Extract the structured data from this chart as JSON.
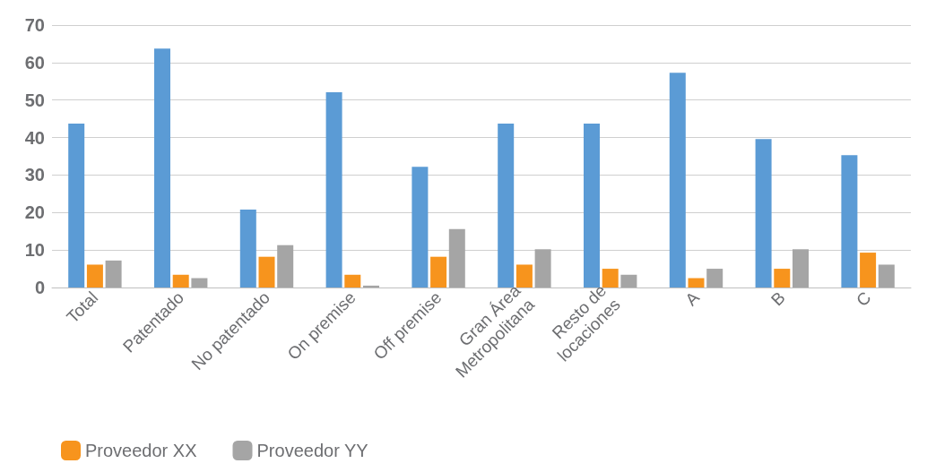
{
  "chart_data": {
    "type": "bar",
    "categories": [
      "Total",
      "Patentado",
      "No patentado",
      "On premise",
      "Off premise",
      "Gran Área\nMetropolitana",
      "Resto de\nlocaciones",
      "A",
      "B",
      "C"
    ],
    "series": [
      {
        "color": "#5b9bd5",
        "values": [
          43.7,
          63.7,
          20.8,
          52.1,
          32.2,
          43.7,
          43.7,
          57.3,
          39.6,
          35.3
        ]
      },
      {
        "name": "Proveedor XX",
        "color": "#f7941d",
        "values": [
          6.1,
          3.4,
          8.2,
          3.4,
          8.2,
          6.1,
          5,
          2.5,
          5,
          9.3
        ]
      },
      {
        "name": "Proveedor YY",
        "color": "#a5a5a5",
        "values": [
          7.2,
          2.5,
          11.3,
          0.5,
          15.6,
          10.2,
          3.4,
          5,
          10.2,
          6.1
        ]
      }
    ],
    "ylim": [
      0,
      70
    ],
    "yticks": [
      0,
      10,
      20,
      30,
      40,
      50,
      60,
      70
    ],
    "grid": "y",
    "legend": "bottom left"
  }
}
